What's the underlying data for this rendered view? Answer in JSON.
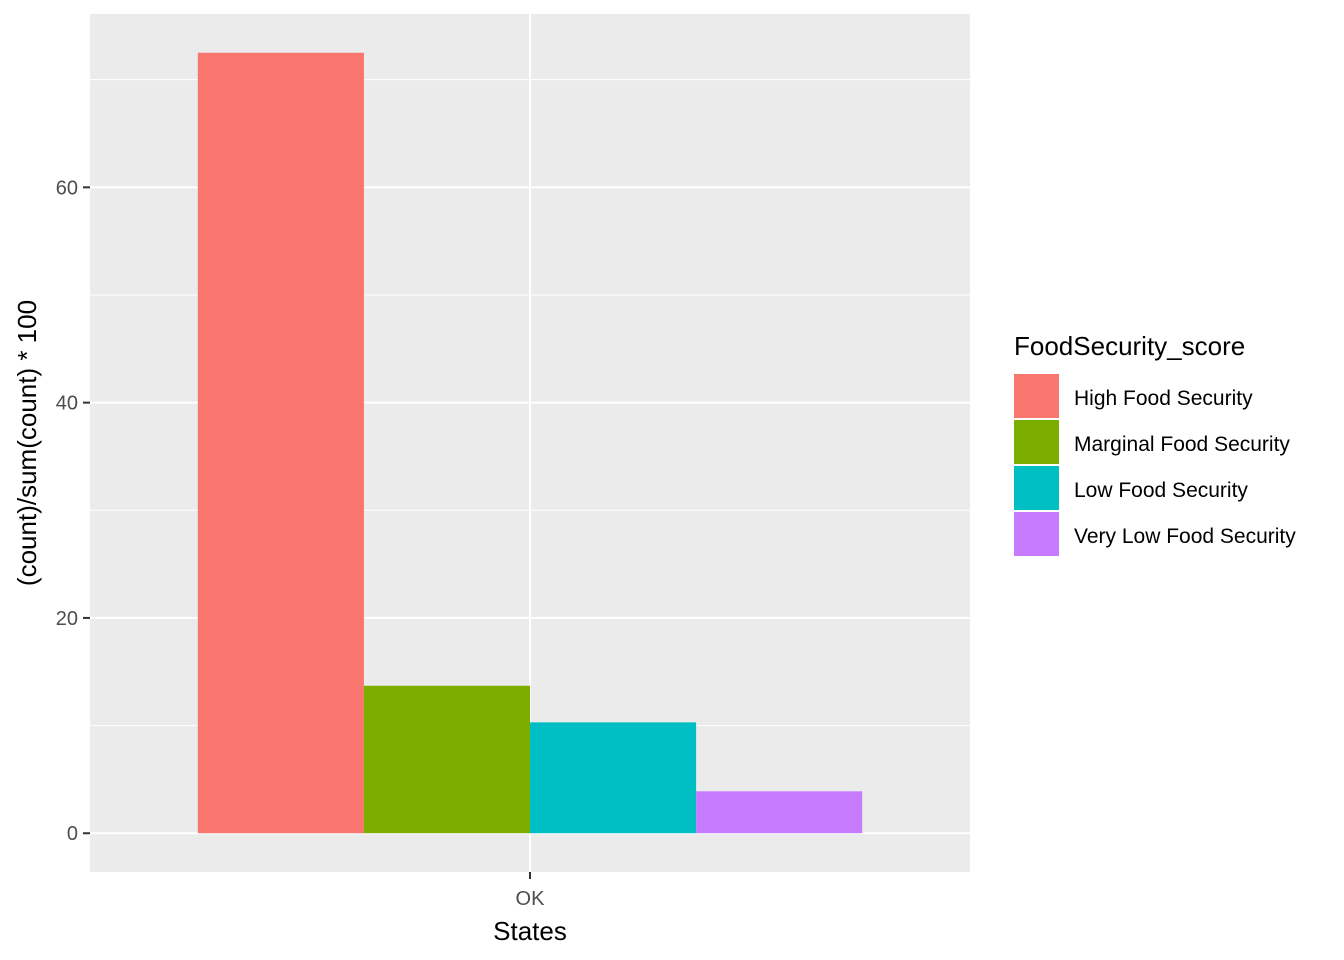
{
  "chart_data": {
    "type": "bar",
    "title": "",
    "xlabel": "States",
    "ylabel": "(count)/sum(count) * 100",
    "categories": [
      "OK"
    ],
    "series": [
      {
        "name": "High Food Security",
        "color": "#F8766D",
        "values": [
          72.5
        ]
      },
      {
        "name": "Marginal Food Security",
        "color": "#7CAE00",
        "values": [
          13.7
        ]
      },
      {
        "name": "Low Food Security",
        "color": "#00BFC4",
        "values": [
          10.3
        ]
      },
      {
        "name": "Very Low Food Security",
        "color": "#C77CFF",
        "values": [
          3.9
        ]
      }
    ],
    "ylim": [
      -3.6,
      76.1
    ],
    "yticks": [
      0,
      20,
      40,
      60
    ],
    "ytick_labels": [
      "0",
      "20",
      "40",
      "60"
    ],
    "grid": true,
    "legend": {
      "title": "FoodSecurity_score",
      "position": "right"
    },
    "panel_background": "#EBEBEB",
    "gridline_color": "#FFFFFF"
  }
}
